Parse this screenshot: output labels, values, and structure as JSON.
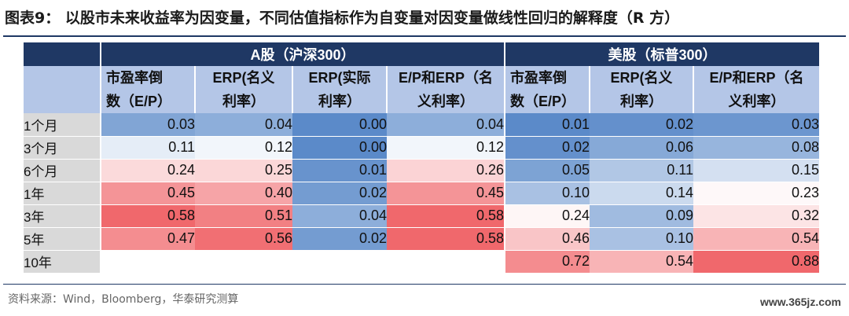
{
  "title": "图表9：  以股市未来收益率为因变量，不同估值指标作为自变量对因变量做线性回归的解释度（R 方）",
  "groups": {
    "a_share": "A股（沪深300）",
    "us": "美股（标普300）"
  },
  "subheaders": {
    "a_pe_l1": "市盈率倒",
    "a_pe_l2": "数（E/P）",
    "a_erp_nom_l1": "ERP(名义",
    "a_erp_nom_l2": "利率）",
    "a_erp_real_l1": "ERP(实际",
    "a_erp_real_l2": "利率）",
    "a_ep_erp_l1": "E/P和ERP（名",
    "a_ep_erp_l2": "义利率）",
    "u_pe_l1": "市盈率倒",
    "u_pe_l2": "数（E/P）",
    "u_erp_l1": "ERP(名义",
    "u_erp_l2": "利率）",
    "u_ep_erp_l1": "E/P和ERP（名",
    "u_ep_erp_l2": "义利率）"
  },
  "rows": [
    {
      "label": "1个月",
      "a": [
        "0.03",
        "0.04",
        "0.00",
        "0.04"
      ],
      "u": [
        "0.01",
        "0.02",
        "0.03"
      ]
    },
    {
      "label": "3个月",
      "a": [
        "0.11",
        "0.12",
        "0.00",
        "0.12"
      ],
      "u": [
        "0.02",
        "0.06",
        "0.08"
      ]
    },
    {
      "label": "6个月",
      "a": [
        "0.24",
        "0.25",
        "0.01",
        "0.26"
      ],
      "u": [
        "0.05",
        "0.11",
        "0.15"
      ]
    },
    {
      "label": "1年",
      "a": [
        "0.45",
        "0.40",
        "0.02",
        "0.45"
      ],
      "u": [
        "0.10",
        "0.14",
        "0.23"
      ]
    },
    {
      "label": "3年",
      "a": [
        "0.58",
        "0.51",
        "0.04",
        "0.58"
      ],
      "u": [
        "0.24",
        "0.09",
        "0.32"
      ]
    },
    {
      "label": "5年",
      "a": [
        "0.47",
        "0.56",
        "0.02",
        "0.58"
      ],
      "u": [
        "0.46",
        "0.10",
        "0.54"
      ]
    },
    {
      "label": "10年",
      "a": [
        "",
        "",
        "",
        ""
      ],
      "u": [
        "0.72",
        "0.54",
        "0.88"
      ]
    }
  ],
  "colors": {
    "header": "#1f3864",
    "subheader": "#b4c6e7",
    "row_label": "#d9d9d9",
    "low": "#5b8ac9",
    "mid": "#ffffff",
    "high": "#f0686c"
  },
  "source": "资料来源：Wind，Bloomberg，华泰研究测算",
  "watermark": "www.365jz.com"
}
